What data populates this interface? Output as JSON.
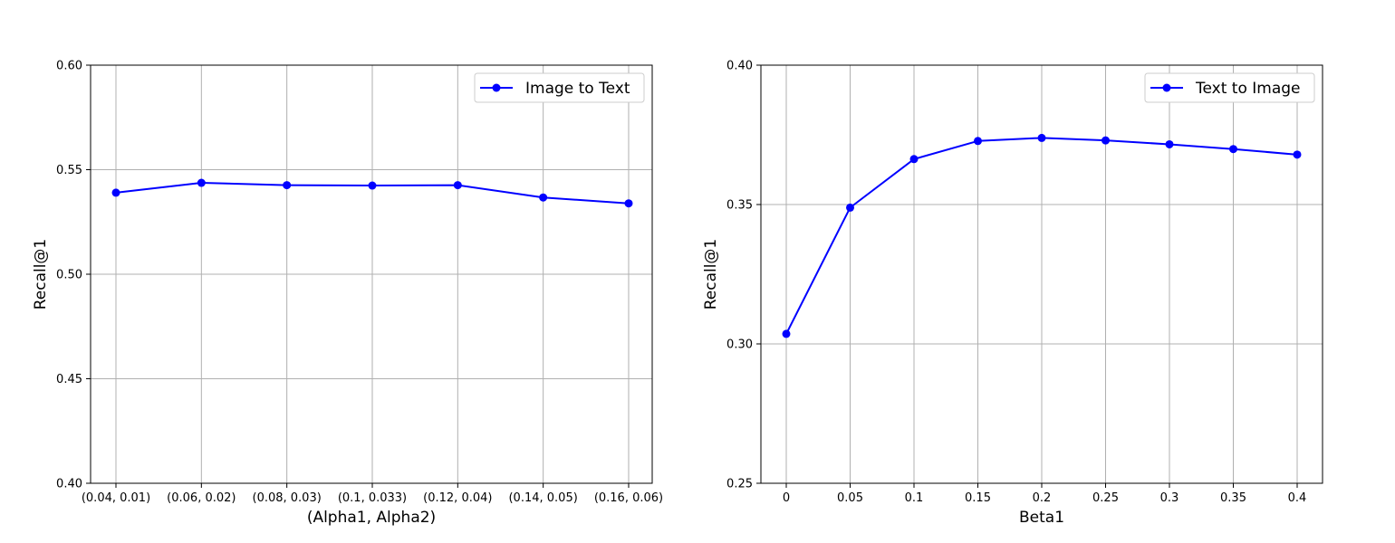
{
  "chart_data": [
    {
      "type": "line",
      "categories": [
        "(0.04, 0.01)",
        "(0.06, 0.02)",
        "(0.08, 0.03)",
        "(0.1, 0.033)",
        "(0.12, 0.04)",
        "(0.14, 0.05)",
        "(0.16, 0.06)"
      ],
      "series": [
        {
          "name": "Image to Text",
          "values": [
            0.539,
            0.5437,
            0.5426,
            0.5424,
            0.5426,
            0.5367,
            0.5339
          ]
        }
      ],
      "xlabel": "(Alpha1, Alpha2)",
      "ylabel": "Recall@1",
      "ylim": [
        0.4,
        0.6
      ],
      "yticks": [
        "0.40",
        "0.45",
        "0.50",
        "0.55",
        "0.60"
      ],
      "grid": true,
      "legend_position": "top-right",
      "line_color": "#0000ff"
    },
    {
      "type": "line",
      "categories": [
        "0",
        "0.05",
        "0.1",
        "0.15",
        "0.2",
        "0.25",
        "0.3",
        "0.35",
        "0.4"
      ],
      "series": [
        {
          "name": "Text to Image",
          "values": [
            0.3036,
            0.3489,
            0.3663,
            0.3728,
            0.3739,
            0.373,
            0.3716,
            0.3699,
            0.3679
          ]
        }
      ],
      "xlabel": "Beta1",
      "ylabel": "Recall@1",
      "ylim": [
        0.25,
        0.4
      ],
      "yticks": [
        "0.25",
        "0.30",
        "0.35",
        "0.40"
      ],
      "grid": true,
      "legend_position": "top-right",
      "line_color": "#0000ff"
    }
  ]
}
